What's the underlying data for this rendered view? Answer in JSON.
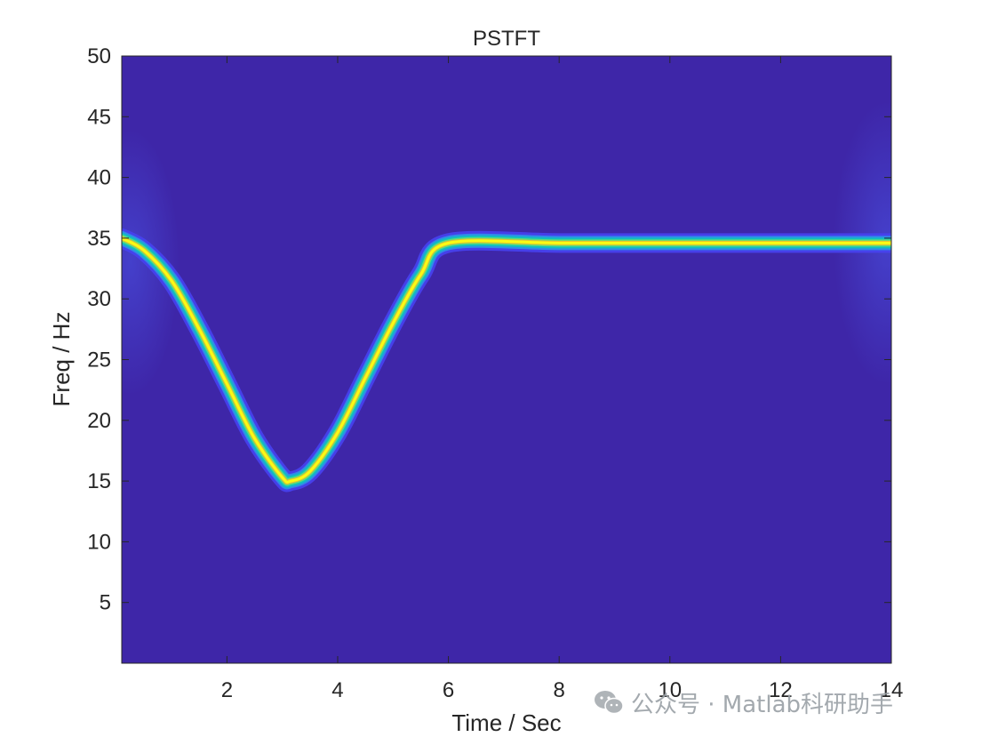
{
  "chart_data": {
    "type": "heatmap",
    "title": "PSTFT",
    "xlabel": "Time / Sec",
    "ylabel": "Freq / Hz",
    "xlim": [
      0.1,
      14
    ],
    "ylim": [
      0,
      50
    ],
    "xticks": [
      2,
      4,
      6,
      8,
      10,
      12,
      14
    ],
    "yticks": [
      5,
      10,
      15,
      20,
      25,
      30,
      35,
      40,
      45,
      50
    ],
    "colormap": [
      "#3e26a8",
      "#4743f0",
      "#2f8ce8",
      "#10bfbe",
      "#5fdc79",
      "#e5c130",
      "#f9fb14"
    ],
    "background_color": "#3e26a8",
    "ridge": {
      "description_segments": [
        {
          "t_start": 0.1,
          "t_end": 6.0,
          "shape": "cosine",
          "freq_start": 35,
          "freq_min": 15,
          "freq_min_at": 3.15,
          "freq_end": 34.6
        },
        {
          "t_start": 6.0,
          "t_end": 14.0,
          "shape": "constant",
          "freq": 34.6
        }
      ],
      "points": [
        [
          0.1,
          35.0
        ],
        [
          0.5,
          34.0
        ],
        [
          1.0,
          31.5
        ],
        [
          1.5,
          27.5
        ],
        [
          2.0,
          23.0
        ],
        [
          2.5,
          18.5
        ],
        [
          3.0,
          15.3
        ],
        [
          3.15,
          15.0
        ],
        [
          3.5,
          15.8
        ],
        [
          4.0,
          19.0
        ],
        [
          4.5,
          23.5
        ],
        [
          5.0,
          28.0
        ],
        [
          5.5,
          32.0
        ],
        [
          6.0,
          34.6
        ],
        [
          8.0,
          34.6
        ],
        [
          10.0,
          34.6
        ],
        [
          12.0,
          34.6
        ],
        [
          14.0,
          34.6
        ]
      ]
    }
  },
  "watermark": {
    "text": "公众号 · Matlab科研助手",
    "icon": "wechat-icon"
  }
}
